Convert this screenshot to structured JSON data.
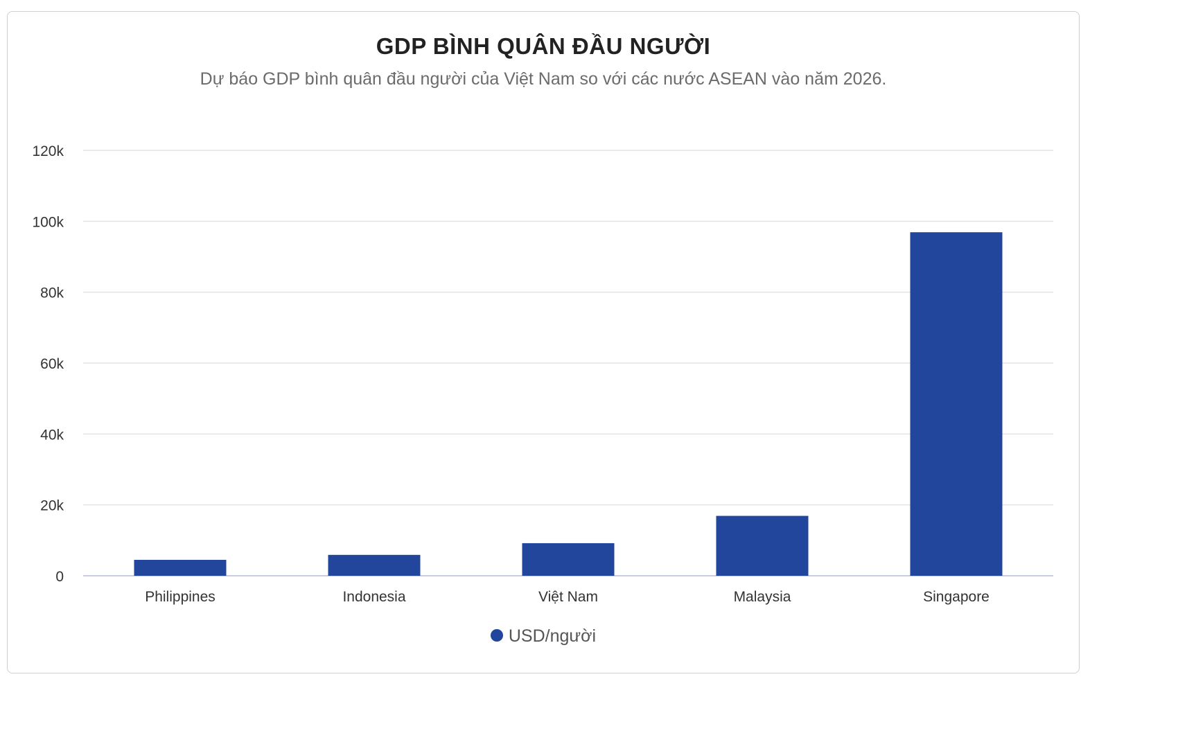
{
  "chart_data": {
    "type": "bar",
    "title": "GDP BÌNH QUÂN ĐẦU NGƯỜI",
    "subtitle": "Dự báo GDP bình quân đầu người của Việt Nam so với các nước ASEAN vào năm 2026.",
    "categories": [
      "Philippines",
      "Indonesia",
      "Việt Nam",
      "Malaysia",
      "Singapore"
    ],
    "series": [
      {
        "name": "USD/người",
        "color": "#21469b",
        "values": [
          4500,
          5900,
          9200,
          16900,
          96900
        ]
      }
    ],
    "ylim": [
      0,
      120000
    ],
    "yticks": [
      0,
      20000,
      40000,
      60000,
      80000,
      100000,
      120000
    ],
    "ytick_labels": [
      "0",
      "20k",
      "40k",
      "60k",
      "80k",
      "100k",
      "120k"
    ],
    "grid": true,
    "legend_position": "bottom-center"
  }
}
